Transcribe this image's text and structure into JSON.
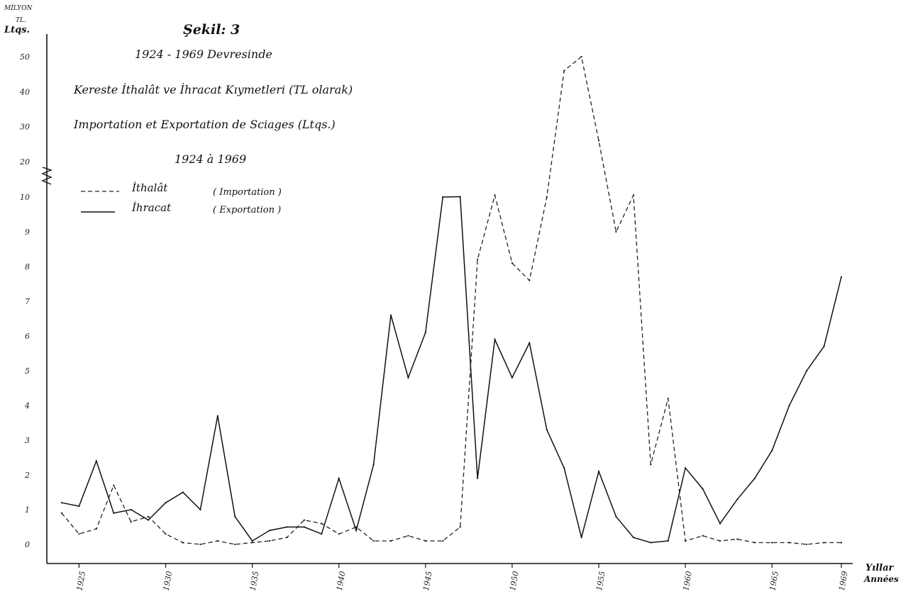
{
  "chart_data": {
    "type": "line",
    "title": "Şekil: 3",
    "subtitle": "1924 - 1969 Devresinde",
    "title_tr": "Kereste İthalât ve İhracat Kıymetleri (TL olarak)",
    "title_fr": "Importation et Exportation de Sciages (Ltqs.)",
    "title_range": "1924 à 1969",
    "y_unit_label": "MİLYON",
    "y_unit_label2": "TL.",
    "y_unit_label3": "Ltqs.",
    "xlabel": "Yıllar",
    "xlabel_fr": "Années",
    "grid": false,
    "legend_position": "top-left",
    "y_axis": {
      "lower_ticks": [
        0,
        1,
        2,
        3,
        4,
        5,
        6,
        7,
        8,
        9,
        10
      ],
      "lower_tick_labels": [
        "0",
        "1",
        "2",
        "3",
        "4",
        "5",
        "6",
        "7",
        "8",
        "9",
        "10"
      ],
      "upper_ticks": [
        20,
        30,
        40,
        50
      ],
      "upper_tick_labels": [
        "20",
        "30",
        "40",
        "50"
      ],
      "break_between": [
        10,
        20
      ],
      "scale_note": "broken axis: 0–10 linear, then 10–50 compressed"
    },
    "x_ticks": [
      1925,
      1930,
      1935,
      1940,
      1945,
      1950,
      1955,
      1960,
      1965,
      1969
    ],
    "x_tick_labels": [
      "1925",
      "1930",
      "1935",
      "1940",
      "1945",
      "1950",
      "1955",
      "1960",
      "1965",
      "1969"
    ],
    "xlim": [
      1924,
      1969
    ],
    "x": [
      1924,
      1925,
      1926,
      1927,
      1928,
      1929,
      1930,
      1931,
      1932,
      1933,
      1934,
      1935,
      1936,
      1937,
      1938,
      1939,
      1940,
      1941,
      1942,
      1943,
      1944,
      1945,
      1946,
      1947,
      1948,
      1949,
      1950,
      1951,
      1952,
      1953,
      1954,
      1955,
      1956,
      1957,
      1958,
      1959,
      1960,
      1961,
      1962,
      1963,
      1964,
      1965,
      1966,
      1967,
      1968,
      1969
    ],
    "series": [
      {
        "name": "İthalât ( Importation )",
        "style": "dashed",
        "color": "#222222",
        "values": [
          0.9,
          0.3,
          0.45,
          1.7,
          0.65,
          0.8,
          0.3,
          0.05,
          0.0,
          0.1,
          0.0,
          0.05,
          0.1,
          0.2,
          0.7,
          0.6,
          0.3,
          0.5,
          0.1,
          0.1,
          0.25,
          0.1,
          0.1,
          0.5,
          8.2,
          10.5,
          8.1,
          7.6,
          10.0,
          46.0,
          50.0,
          26.0,
          9.0,
          10.5,
          2.3,
          4.2,
          0.1,
          0.25,
          0.1,
          0.15,
          0.05,
          0.05,
          0.05,
          0.0,
          0.05,
          0.05
        ]
      },
      {
        "name": "İhracat ( Exportation )",
        "style": "solid",
        "color": "#111111",
        "values": [
          1.2,
          1.1,
          2.4,
          0.9,
          1.0,
          0.7,
          1.2,
          1.5,
          1.0,
          3.7,
          0.8,
          0.1,
          0.4,
          0.5,
          0.5,
          0.3,
          1.9,
          0.4,
          2.3,
          6.6,
          4.8,
          6.1,
          10.0,
          10.1,
          1.9,
          5.9,
          4.8,
          5.8,
          3.3,
          2.2,
          0.2,
          2.1,
          0.8,
          0.2,
          0.05,
          0.1,
          2.2,
          1.6,
          0.6,
          1.3,
          1.9,
          2.7,
          4.0,
          5.0,
          5.7,
          7.7
        ]
      }
    ],
    "legend": [
      {
        "label": "İthalât",
        "label_fr": "( Importation )",
        "style": "dashed"
      },
      {
        "label": "İhracat",
        "label_fr": "( Exportation )",
        "style": "solid"
      }
    ]
  }
}
